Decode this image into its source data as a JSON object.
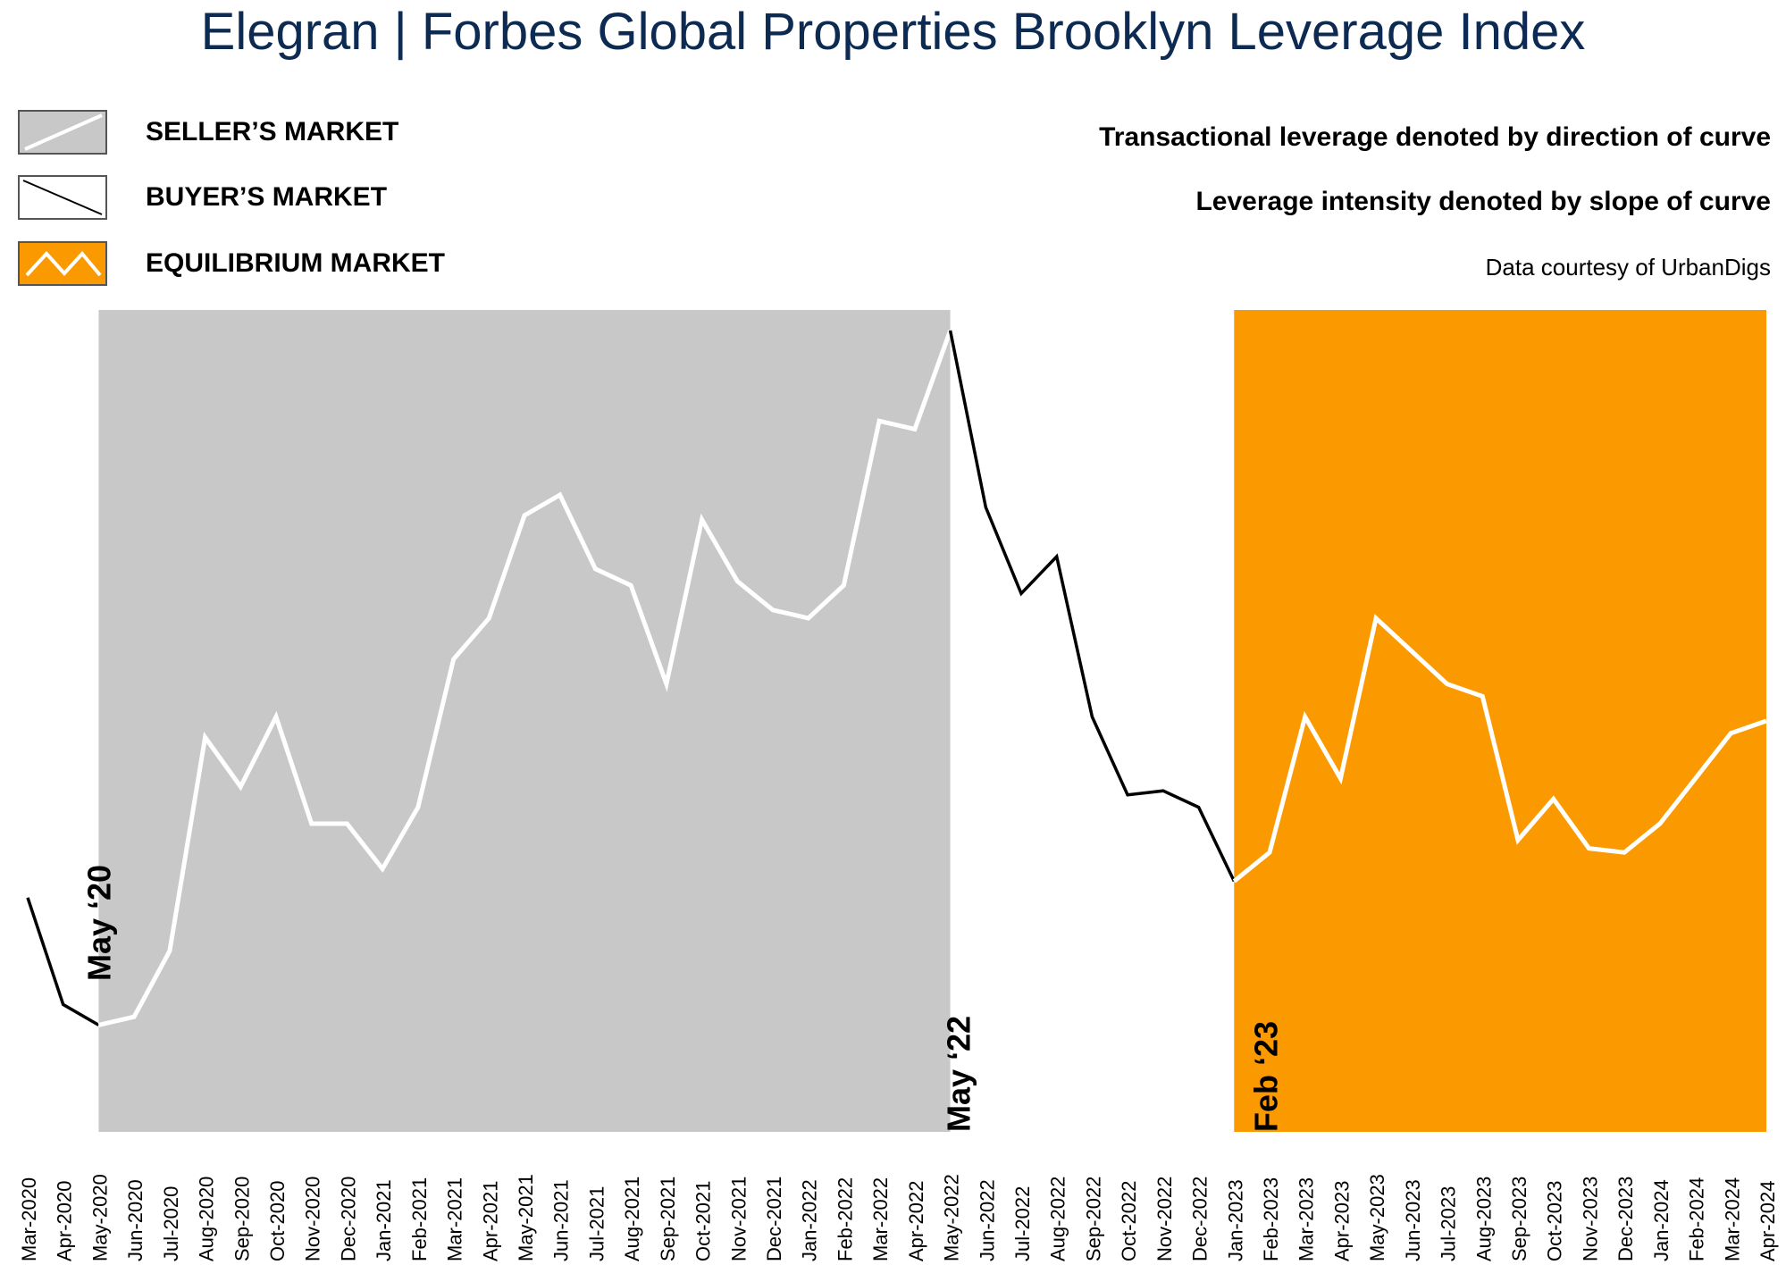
{
  "title": {
    "main": "Elegran | Forbes Global Properties",
    "sub": "Brooklyn Leverage Index"
  },
  "legend": [
    {
      "label": "SELLER’S MARKET",
      "icon": "seller-market-swatch",
      "color": "#c8c8c8"
    },
    {
      "label": "BUYER’S MARKET",
      "icon": "buyer-market-swatch",
      "color": "#ffffff"
    },
    {
      "label": "EQUILIBRIUM MARKET",
      "icon": "equilibrium-market-swatch",
      "color": "#fb9a00"
    }
  ],
  "notes": {
    "leverage_direction": "Transactional leverage denoted by direction of curve",
    "leverage_intensity": "Leverage intensity denoted by slope of curve",
    "source": "Data courtesy of UrbanDigs"
  },
  "colors": {
    "seller_region": "#c8c8c8",
    "equilibrium_region": "#fb9a00",
    "seller_line": "#ffffff",
    "buyer_line": "#000000",
    "title": "#0d2b52"
  },
  "chart_data": {
    "type": "line",
    "title": "Elegran | Forbes Global Properties Brooklyn Leverage Index",
    "xlabel": "",
    "ylabel": "",
    "grid": false,
    "y_axis_shown": false,
    "ylim": [
      0,
      100
    ],
    "x": [
      "Mar-2020",
      "Apr-2020",
      "May-2020",
      "Jun-2020",
      "Jul-2020",
      "Aug-2020",
      "Sep-2020",
      "Oct-2020",
      "Nov-2020",
      "Dec-2020",
      "Jan-2021",
      "Feb-2021",
      "Mar-2021",
      "Apr-2021",
      "May-2021",
      "Jun-2021",
      "Jul-2021",
      "Aug-2021",
      "Sep-2021",
      "Oct-2021",
      "Nov-2021",
      "Dec-2021",
      "Jan-2022",
      "Feb-2022",
      "Mar-2022",
      "Apr-2022",
      "May-2022",
      "Jun-2022",
      "Jul-2022",
      "Aug-2022",
      "Sep-2022",
      "Oct-2022",
      "Nov-2022",
      "Dec-2022",
      "Jan-2023",
      "Feb-2023",
      "Mar-2023",
      "Apr-2023",
      "May-2023",
      "Jun-2023",
      "Jul-2023",
      "Aug-2023",
      "Sep-2023",
      "Oct-2023",
      "Nov-2023",
      "Dec-2023",
      "Jan-2024",
      "Feb-2024",
      "Mar-2024",
      "Apr-2024"
    ],
    "series": [
      {
        "values": [
          28.5,
          15.5,
          13.0,
          14.0,
          22.0,
          48.0,
          42.0,
          50.5,
          37.5,
          37.5,
          32.0,
          39.5,
          57.5,
          62.5,
          75.0,
          77.5,
          68.5,
          66.5,
          54.5,
          74.5,
          67.0,
          63.5,
          62.5,
          66.5,
          86.5,
          85.5,
          97.5,
          76.0,
          65.5,
          70.0,
          50.5,
          41.0,
          41.5,
          39.5,
          30.5,
          34.0,
          50.5,
          43.0,
          62.5,
          58.5,
          54.5,
          53.0,
          35.5,
          40.5,
          34.5,
          34.0,
          37.5,
          43.0,
          48.5,
          50.0
        ]
      }
    ],
    "regions": [
      {
        "type": "seller",
        "start": "May-2020",
        "end": "May-2022"
      },
      {
        "type": "equilibrium",
        "start": "Jan-2023",
        "end": "Apr-2024"
      }
    ],
    "segments": [
      {
        "type": "buyer",
        "start": "Mar-2020",
        "end": "May-2020"
      },
      {
        "type": "seller",
        "start": "May-2020",
        "end": "May-2022"
      },
      {
        "type": "buyer",
        "start": "May-2022",
        "end": "Jan-2023"
      },
      {
        "type": "equilibrium",
        "start": "Jan-2023",
        "end": "Apr-2024"
      }
    ],
    "annotations": [
      {
        "text": "May ‘20",
        "at": "May-2020"
      },
      {
        "text": "May ‘22",
        "at": "May-2022"
      },
      {
        "text": "Feb ‘23",
        "at": "Jan-2023"
      }
    ]
  }
}
